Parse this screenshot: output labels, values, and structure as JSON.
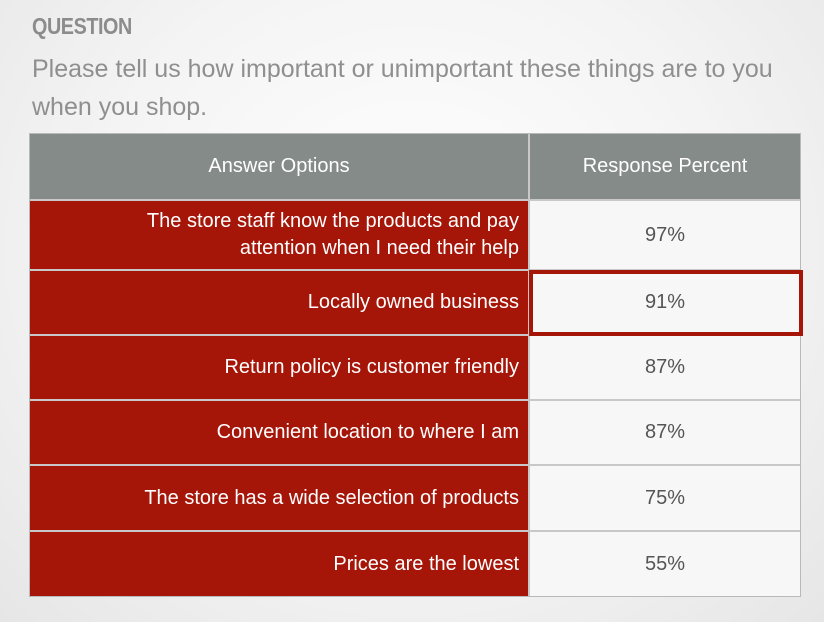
{
  "question": {
    "label": "QUESTION",
    "text": "Please tell us how important or unimportant these things are to you when you shop."
  },
  "table": {
    "headers": [
      "Answer Options",
      "Response Percent"
    ],
    "rows": [
      {
        "option": "The store staff know the products and pay attention when I need their help",
        "percent": "97%"
      },
      {
        "option": "Locally owned business",
        "percent": "91%"
      },
      {
        "option": "Return policy is customer friendly",
        "percent": "87%"
      },
      {
        "option": "Convenient location to where I am",
        "percent": "87%"
      },
      {
        "option": "The store has a wide selection of products",
        "percent": "75%"
      },
      {
        "option": "Prices are the lowest",
        "percent": "55%"
      }
    ]
  },
  "colors": {
    "header_bg": "#858b88",
    "option_bg": "#a51508",
    "highlight": "#a51508"
  }
}
